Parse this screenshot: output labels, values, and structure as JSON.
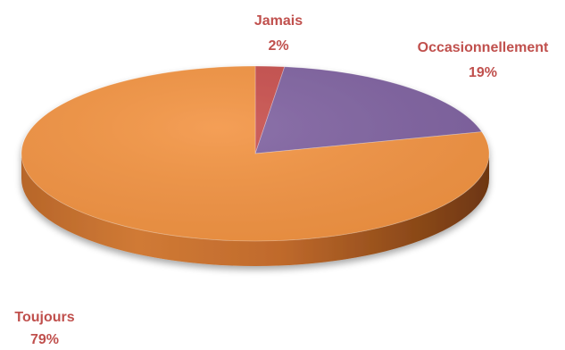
{
  "chart_data": {
    "type": "pie",
    "title": "",
    "slices": [
      {
        "label": "Toujours",
        "value": 79,
        "display": "79%",
        "color": "#F39443"
      },
      {
        "label": "Jamais",
        "value": 2,
        "display": "2%",
        "color": "#C8504D"
      },
      {
        "label": "Occasionnellement",
        "value": 19,
        "display": "19%",
        "color": "#8063A1"
      }
    ],
    "style": "3d",
    "label_color": "#C0504D",
    "legend": "none"
  }
}
